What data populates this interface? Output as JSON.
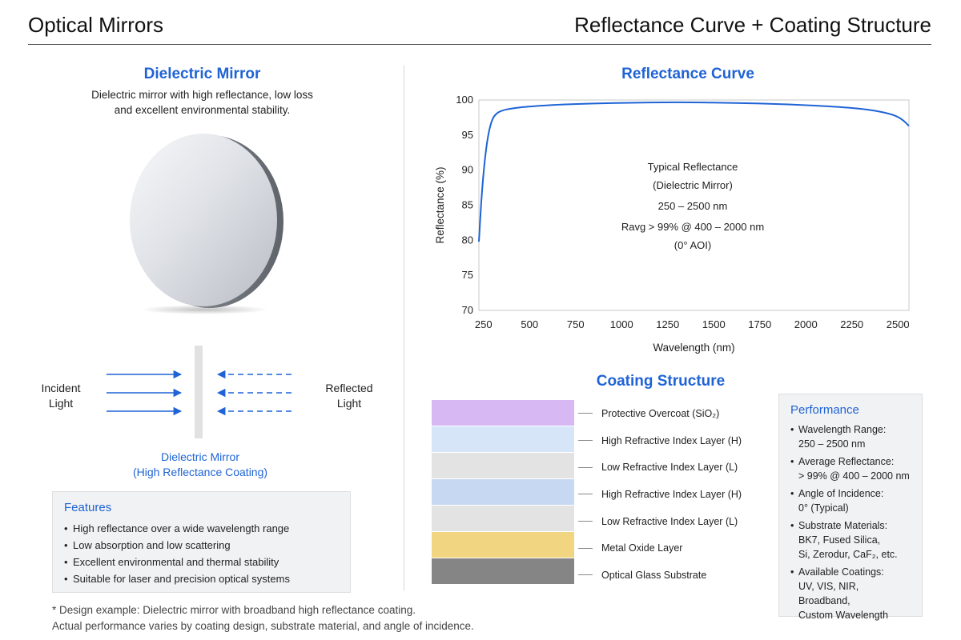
{
  "header": {
    "left_title": "Optical Mirrors",
    "right_title": "Reflectance Curve + Coating Structure"
  },
  "left": {
    "title": "Dielectric Mirror",
    "description": [
      "Dielectric mirror with high reflectance, low loss",
      "and excellent environmental stability."
    ],
    "incident_label": [
      "Incident",
      "Light"
    ],
    "reflected_label": [
      "Reflected",
      "Light"
    ],
    "mirror_label": [
      "Dielectric Mirror",
      "(High Reflectance Coating)"
    ],
    "features": {
      "title": "Features",
      "items": [
        "High reflectance over a wide wavelength range",
        "Low absorption and low scattering",
        "Excellent environmental and thermal stability",
        "Suitable for laser and precision optical systems"
      ]
    },
    "footnote": [
      "* Design example: Dielectric mirror with broadband high reflectance coating.",
      "Actual performance varies by coating design, substrate material, and angle of incidence."
    ]
  },
  "chart_data": {
    "type": "line",
    "title": "Reflectance Curve",
    "xlabel": "Wavelength (nm)",
    "ylabel": "Reflectance (%)",
    "xlim": [
      225,
      2560
    ],
    "ylim": [
      70,
      100
    ],
    "xticks": [
      250,
      500,
      750,
      1000,
      1250,
      1500,
      1750,
      2000,
      2250,
      2500
    ],
    "yticks": [
      70,
      75,
      80,
      85,
      90,
      95,
      100
    ],
    "grid": false,
    "line_color": "#1f63d6",
    "series": [
      {
        "x": [
          225,
          240,
          255,
          270,
          285,
          300,
          320,
          350,
          400,
          500,
          700,
          1000,
          1300,
          1600,
          1900,
          2200,
          2350,
          2450,
          2500,
          2530,
          2560
        ],
        "y": [
          79.8,
          86.5,
          91.0,
          94.2,
          96.2,
          97.4,
          98.1,
          98.5,
          98.8,
          99.1,
          99.4,
          99.6,
          99.7,
          99.6,
          99.4,
          99.0,
          98.6,
          98.1,
          97.6,
          97.1,
          96.3
        ]
      }
    ],
    "annotation": [
      "Typical Reflectance",
      "(Dielectric Mirror)",
      "250 – 2500 nm",
      "Ravg > 99% @ 400 – 2000 nm",
      "(0° AOI)"
    ]
  },
  "coating": {
    "title": "Coating Structure",
    "layers": [
      {
        "label": "Protective Overcoat (SiO₂)",
        "color": "#d7b8f3"
      },
      {
        "label": "High Refractive Index Layer (H)",
        "color": "#d6e6f8"
      },
      {
        "label": "Low Refractive Index Layer (L)",
        "color": "#e3e3e3"
      },
      {
        "label": "High Refractive Index Layer (H)",
        "color": "#c7d9f2"
      },
      {
        "label": "Low Refractive Index Layer (L)",
        "color": "#e3e3e3"
      },
      {
        "label": "Metal Oxide Layer",
        "color": "#f2d580"
      },
      {
        "label": "Optical Glass Substrate",
        "color": "#858585"
      }
    ]
  },
  "performance": {
    "title": "Performance",
    "items": [
      [
        "Wavelength Range:",
        "250 – 2500 nm"
      ],
      [
        "Average Reflectance:",
        "> 99% @ 400 – 2000 nm"
      ],
      [
        "Angle of Incidence:",
        "0° (Typical)"
      ],
      [
        "Substrate Materials:",
        "BK7, Fused Silica,",
        "Si, Zerodur, CaF₂, etc."
      ],
      [
        "Available Coatings:",
        "UV, VIS, NIR, Broadband,",
        "Custom Wavelength"
      ]
    ]
  }
}
